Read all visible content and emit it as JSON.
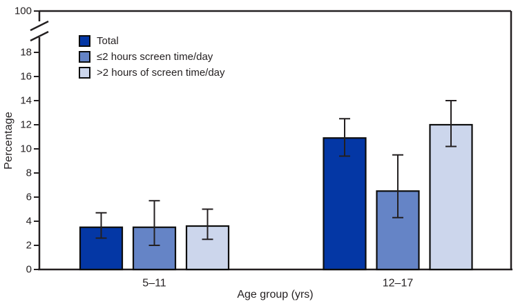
{
  "figure": {
    "ylabel": "Percentage",
    "xlabel": "Age group (yrs)"
  },
  "legend": {
    "items": [
      {
        "label": "Total",
        "color": "#0437a5"
      },
      {
        "label": "≤2 hours screen time/day",
        "color": "#6584c6"
      },
      {
        "label": ">2 hours of screen time/day",
        "color": "#ccd6ec"
      }
    ]
  },
  "chart_data": {
    "type": "bar",
    "title": "",
    "xlabel": "Age group (yrs)",
    "ylabel": "Percentage",
    "categories": [
      "5–11",
      "12–17"
    ],
    "series": [
      {
        "name": "Total",
        "color": "#0437a5",
        "values": [
          3.5,
          10.9
        ],
        "ci_low": [
          2.6,
          9.4
        ],
        "ci_high": [
          4.7,
          12.5
        ]
      },
      {
        "name": "≤2 hours screen time/day",
        "color": "#6584c6",
        "values": [
          3.5,
          6.5
        ],
        "ci_low": [
          2.0,
          4.3
        ],
        "ci_high": [
          5.7,
          9.5
        ]
      },
      {
        "name": ">2 hours of screen time/day",
        "color": "#ccd6ec",
        "values": [
          3.6,
          12.0
        ],
        "ci_low": [
          2.5,
          10.2
        ],
        "ci_high": [
          5.0,
          14.0
        ]
      }
    ],
    "yticks": [
      0,
      2,
      4,
      6,
      8,
      10,
      12,
      14,
      16,
      18
    ],
    "ytick_break_top": "100",
    "axis_break": true,
    "ylim_display": [
      0,
      18
    ],
    "error_bars": true,
    "grid": false,
    "legend_position": "upper-left-inside"
  },
  "colors": {
    "axis": "#231f20",
    "bar_stroke": "#0d0d0d",
    "text": "#231f20",
    "background": "#ffffff"
  }
}
